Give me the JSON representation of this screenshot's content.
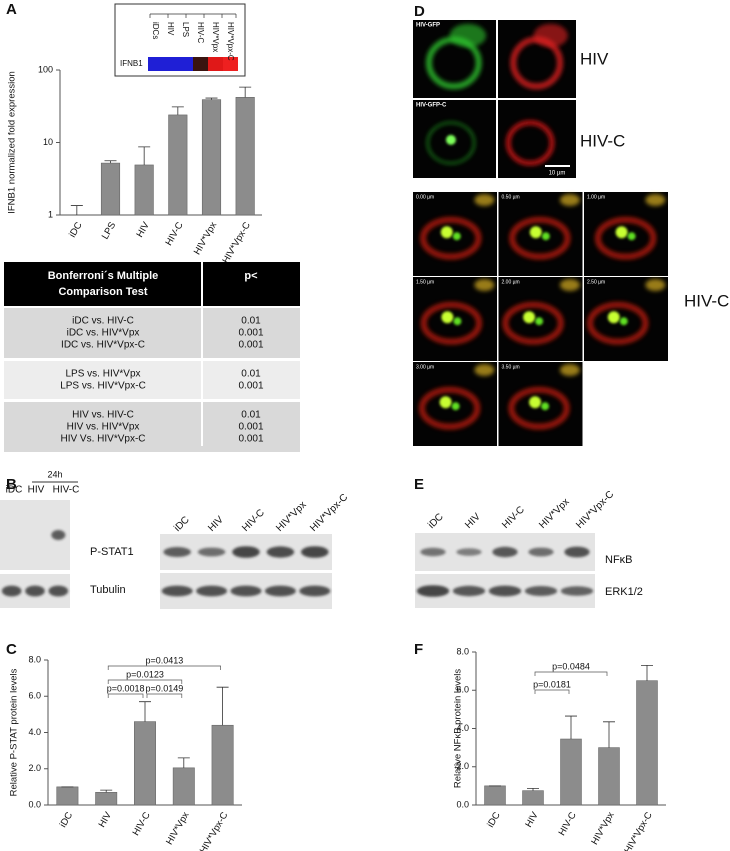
{
  "panel_labels": [
    "A",
    "B",
    "C",
    "D",
    "E",
    "F"
  ],
  "chart_data": [
    {
      "type": "bar",
      "y_label": "IFNB1 normalized fold expression",
      "categories": [
        "iDC",
        "LPS",
        "HIV",
        "HIV-C",
        "HIV*Vpx",
        "HIV*Vpx-C"
      ],
      "values": [
        1,
        5.2,
        4.9,
        24,
        39,
        42
      ],
      "errors": [
        0.35,
        0.4,
        3.8,
        7,
        2,
        16
      ],
      "color": "#8c8c8c",
      "log_scale": true,
      "ylim": [
        1,
        100
      ],
      "yticks": [
        1,
        10,
        100
      ]
    },
    {
      "type": "bar",
      "y_label": "Relative P-STAT protein levels",
      "categories": [
        "iDC",
        "HIV",
        "HIV-C",
        "HIV*Vpx",
        "HIV*Vpx-C"
      ],
      "values": [
        1.0,
        0.7,
        4.6,
        2.05,
        4.4
      ],
      "errors": [
        0,
        0.12,
        1.1,
        0.55,
        2.1
      ],
      "color": "#8c8c8c",
      "ylim": [
        0,
        8
      ],
      "yticks": [
        {
          "value": 0,
          "label": "0.0"
        },
        {
          "value": 2,
          "label": "2.0"
        },
        {
          "value": 4,
          "label": "4.0"
        },
        {
          "value": 6,
          "label": "6.0"
        },
        {
          "value": 8,
          "label": "8.0"
        }
      ],
      "annotations": [
        "p=0.0413",
        "p=0.0123",
        "p=0.0018",
        "p=0.0149"
      ]
    },
    {
      "type": "bar",
      "y_label": "Relative NFκB protein levels",
      "categories": [
        "iDC",
        "HIV",
        "HIV-C",
        "HIV*Vpx",
        "HIV*Vpx-C"
      ],
      "values": [
        1.0,
        0.75,
        3.45,
        3.0,
        6.5
      ],
      "errors": [
        0,
        0.12,
        1.2,
        1.35,
        0.8
      ],
      "color": "#8c8c8c",
      "ylim": [
        0,
        8
      ],
      "yticks": [
        {
          "value": 0,
          "label": "0.0"
        },
        {
          "value": 2,
          "label": "2.0"
        },
        {
          "value": 4,
          "label": "4.0"
        },
        {
          "value": 6,
          "label": "6.0"
        },
        {
          "value": 8,
          "label": "8.0"
        }
      ],
      "annotations": [
        "p=0.0484",
        "p=0.0181"
      ]
    }
  ],
  "heatmap": {
    "row_label": "IFNB1",
    "columns": [
      "iDCs",
      "HIV",
      "LPS",
      "HIV-C",
      "HIV*Vpx",
      "HIV*Vpx-C"
    ],
    "colors": [
      "#1f1fd6",
      "#1f1fd6",
      "#1f1fd6",
      "#3a1410",
      "#e01818",
      "#ee2020"
    ]
  },
  "table": {
    "header": {
      "lines": [
        "Bonferroni´s Multiple",
        "Comparison Test"
      ],
      "p": "p<"
    },
    "groups": [
      [
        [
          "iDC vs. HIV-C",
          "0.01"
        ],
        [
          "iDC vs. HIV*Vpx",
          "0.001"
        ],
        [
          "IDC vs. HIV*Vpx-C",
          "0.001"
        ]
      ],
      [
        [
          "LPS vs. HIV*Vpx",
          "0.01"
        ],
        [
          "LPS vs. HIV*Vpx-C",
          "0.001"
        ]
      ],
      [
        [
          "HIV vs. HIV-C",
          "0.01"
        ],
        [
          "HIV vs. HIV*Vpx",
          "0.001"
        ],
        [
          "HIV Vs. HIV*Vpx-C",
          "0.001"
        ]
      ]
    ]
  },
  "microscopy": {
    "rows": [
      {
        "channel_label": "HIV-GFP",
        "label": "HIV"
      },
      {
        "channel_label": "HIV-GFP-C",
        "label": "HIV-C"
      }
    ],
    "scale_bar": "10 µm",
    "timelapse_labels": [
      "0.00 µm",
      "0.50 µm",
      "1.00 µm",
      "1.50 µm",
      "2.00 µm",
      "2.50 µm",
      "3.00 µm",
      "3.50 µm"
    ],
    "timelapse_label": "HIV-C"
  },
  "blot_b": {
    "time": "24h",
    "left_lanes": [
      "iDC",
      "HIV",
      "HIV-C"
    ],
    "right_lanes": [
      "iDC",
      "HIV",
      "HIV-C",
      "HIV*Vpx",
      "HIV*Vpx-C"
    ],
    "rows": [
      "P-STAT1",
      "Tubulin"
    ]
  },
  "blot_e": {
    "lanes": [
      "iDC",
      "HIV",
      "HIV-C",
      "HIV*Vpx",
      "HIV*Vpx-C"
    ],
    "rows": [
      "NFκB",
      "ERK1/2"
    ]
  }
}
